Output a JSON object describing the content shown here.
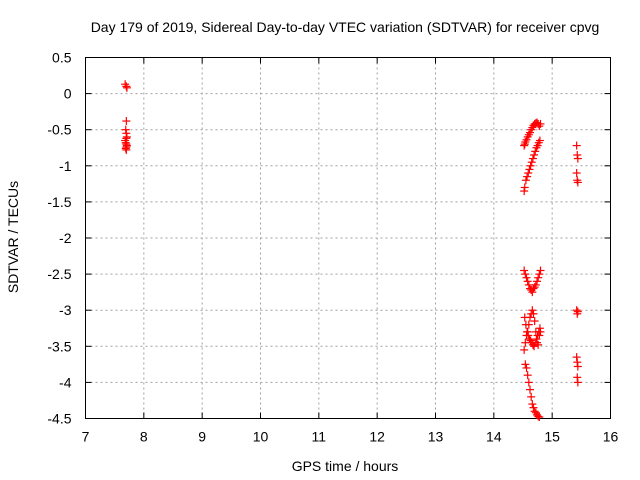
{
  "chart_data": {
    "type": "scatter",
    "title": "Day 179 of 2019, Sidereal Day-to-day VTEC variation (SDTVAR) for receiver cpvg",
    "xlabel": "GPS time / hours",
    "ylabel": "SDTVAR / TECUs",
    "xlim": [
      7,
      16
    ],
    "ylim": [
      -4.5,
      0.5
    ],
    "xticks": [
      7,
      8,
      9,
      10,
      11,
      12,
      13,
      14,
      15,
      16
    ],
    "yticks": [
      0.5,
      0,
      -0.5,
      -1,
      -1.5,
      -2,
      -2.5,
      -3,
      -3.5,
      -4,
      -4.5
    ],
    "xtick_labels": [
      "7",
      "8",
      "9",
      "10",
      "11",
      "12",
      "13",
      "14",
      "15",
      "16"
    ],
    "ytick_labels": [
      "0.5",
      "0",
      "-0.5",
      "-1",
      "-1.5",
      "-2",
      "-2.5",
      "-3",
      "-3.5",
      "-4",
      "-4.5"
    ],
    "grid": true,
    "marker": "+",
    "color": "#ff0000",
    "series": [
      {
        "name": "SDTVAR",
        "x": [
          7.68,
          7.7,
          7.71,
          7.7,
          7.69,
          7.7,
          7.71,
          7.7,
          7.68,
          7.69,
          7.7,
          7.71,
          7.7,
          7.69,
          7.7,
          14.52,
          14.53,
          14.54,
          14.56,
          14.58,
          14.6,
          14.62,
          14.64,
          14.66,
          14.68,
          14.7,
          14.72,
          14.74,
          14.76,
          14.78,
          14.8,
          14.52,
          14.53,
          14.55,
          14.57,
          14.59,
          14.61,
          14.63,
          14.65,
          14.67,
          14.69,
          14.71,
          14.73,
          14.75,
          14.77,
          14.79,
          14.52,
          14.54,
          14.56,
          14.58,
          14.6,
          14.62,
          14.64,
          14.66,
          14.68,
          14.7,
          14.72,
          14.74,
          14.76,
          14.78,
          14.8,
          14.53,
          14.55,
          14.57,
          14.59,
          14.61,
          14.63,
          14.65,
          14.67,
          14.69,
          14.71,
          14.73,
          14.75,
          14.77,
          14.79,
          14.52,
          14.54,
          14.56,
          14.58,
          14.6,
          14.62,
          14.64,
          14.66,
          14.68,
          14.7,
          14.72,
          14.74,
          14.76,
          14.78,
          14.8,
          14.54,
          14.56,
          14.58,
          14.6,
          14.62,
          14.64,
          14.66,
          14.68,
          14.7,
          14.72,
          14.74,
          14.76,
          14.78,
          15.42,
          15.43,
          15.44,
          15.42,
          15.43,
          15.44,
          15.42,
          15.43,
          15.44,
          15.42,
          15.43,
          15.44,
          15.43,
          15.44
        ],
        "y": [
          0.13,
          0.1,
          0.08,
          -0.38,
          -0.5,
          -0.55,
          -0.6,
          -0.62,
          -0.65,
          -0.68,
          -0.7,
          -0.72,
          -0.74,
          -0.76,
          -0.78,
          -0.72,
          -0.7,
          -0.67,
          -0.64,
          -0.6,
          -0.57,
          -0.54,
          -0.5,
          -0.47,
          -0.44,
          -0.42,
          -0.41,
          -0.4,
          -0.42,
          -0.45,
          -0.42,
          -1.35,
          -1.3,
          -1.2,
          -1.15,
          -1.1,
          -1.05,
          -1.0,
          -0.95,
          -0.9,
          -0.85,
          -0.8,
          -0.75,
          -0.72,
          -0.68,
          -0.65,
          -2.45,
          -2.5,
          -2.55,
          -2.6,
          -2.65,
          -2.7,
          -2.72,
          -2.75,
          -2.7,
          -2.68,
          -2.65,
          -2.6,
          -2.55,
          -2.5,
          -2.45,
          -3.1,
          -3.2,
          -3.3,
          -3.35,
          -3.4,
          -3.42,
          -3.45,
          -3.48,
          -3.5,
          -3.45,
          -3.4,
          -3.35,
          -3.3,
          -3.25,
          -3.55,
          -3.45,
          -3.35,
          -3.3,
          -3.2,
          -3.1,
          -3.05,
          -3.0,
          -3.05,
          -3.15,
          -3.3,
          -3.45,
          -3.48,
          -3.35,
          -3.3,
          -3.75,
          -3.8,
          -3.9,
          -4.0,
          -4.1,
          -4.2,
          -4.3,
          -4.35,
          -4.4,
          -4.42,
          -4.45,
          -4.47,
          -4.48,
          -0.72,
          -0.85,
          -0.9,
          -1.1,
          -1.2,
          -1.23,
          -3.0,
          -3.05,
          -3.02,
          -3.65,
          -3.72,
          -3.78,
          -3.93,
          -4.0
        ]
      }
    ]
  }
}
